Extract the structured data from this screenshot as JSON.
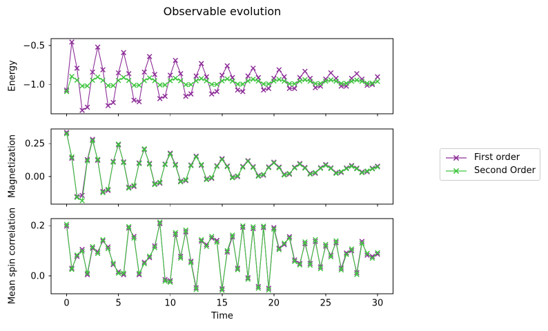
{
  "chart_data": {
    "type": "line",
    "title": "Observable evolution",
    "xlabel": "Time",
    "marker": "x",
    "grid": false,
    "legend": {
      "position": "center right",
      "entries": [
        {
          "label": "First order",
          "color": "#8c2d97",
          "marker": "x"
        },
        {
          "label": "Second Order",
          "color": "#3ec43e",
          "marker": "x"
        }
      ]
    },
    "xlim": [
      -1.5,
      31.5
    ],
    "xticks": [
      0,
      5,
      10,
      15,
      20,
      25,
      30
    ],
    "xtick_labels": [
      "0",
      "5",
      "10",
      "15",
      "20",
      "25",
      "30"
    ],
    "x": [
      0,
      0.5,
      1,
      1.5,
      2,
      2.5,
      3,
      3.5,
      4,
      4.5,
      5,
      5.5,
      6,
      6.5,
      7,
      7.5,
      8,
      8.5,
      9,
      9.5,
      10,
      10.5,
      11,
      11.5,
      12,
      12.5,
      13,
      13.5,
      14,
      14.5,
      15,
      15.5,
      16,
      16.5,
      17,
      17.5,
      18,
      18.5,
      19,
      19.5,
      20,
      20.5,
      21,
      21.5,
      22,
      22.5,
      23,
      23.5,
      24,
      24.5,
      25,
      25.5,
      26,
      26.5,
      27,
      27.5,
      28,
      28.5,
      29,
      29.5,
      30
    ],
    "panels": [
      {
        "id": "energy",
        "ylabel": "Energy",
        "ylim": [
          -1.374,
          -0.411
        ],
        "yticks": [
          -0.5,
          -1.0
        ],
        "ytick_labels": [
          "−0.5",
          "−1.0"
        ],
        "series": [
          {
            "name": "First order",
            "values": [
              -1.07,
              -0.455,
              -0.79,
              -1.33,
              -1.29,
              -0.84,
              -0.52,
              -0.81,
              -1.27,
              -1.23,
              -0.85,
              -0.59,
              -0.86,
              -1.2,
              -1.22,
              -0.84,
              -0.64,
              -0.87,
              -1.18,
              -1.15,
              -0.88,
              -0.69,
              -0.86,
              -1.15,
              -1.12,
              -0.89,
              -0.73,
              -0.9,
              -1.12,
              -1.09,
              -0.88,
              -0.76,
              -0.91,
              -1.07,
              -1.09,
              -0.89,
              -0.79,
              -0.91,
              -1.07,
              -1.05,
              -0.92,
              -0.81,
              -0.9,
              -1.05,
              -1.05,
              -0.91,
              -0.83,
              -0.92,
              -1.04,
              -1.02,
              -0.93,
              -0.85,
              -0.92,
              -1.02,
              -1.02,
              -0.92,
              -0.86,
              -0.93,
              -1.01,
              -1.0,
              -0.9
            ]
          },
          {
            "name": "Second Order",
            "values": [
              -1.09,
              -0.896,
              -0.944,
              -1.018,
              -1.017,
              -0.945,
              -0.903,
              -0.946,
              -1.013,
              -1.012,
              -0.947,
              -0.909,
              -0.948,
              -1.009,
              -1.008,
              -0.949,
              -0.914,
              -0.95,
              -1.005,
              -1.004,
              -0.951,
              -0.919,
              -0.951,
              -1.001,
              -1.0,
              -0.952,
              -0.923,
              -0.952,
              -0.997,
              -0.997,
              -0.953,
              -0.927,
              -0.954,
              -0.994,
              -0.994,
              -0.954,
              -0.931,
              -0.955,
              -0.992,
              -0.991,
              -0.955,
              -0.934,
              -0.956,
              -0.989,
              -0.989,
              -0.956,
              -0.937,
              -0.957,
              -0.987,
              -0.986,
              -0.957,
              -0.94,
              -0.957,
              -0.985,
              -0.984,
              -0.958,
              -0.942,
              -0.958,
              -0.983,
              -0.982,
              -0.959
            ]
          }
        ]
      },
      {
        "id": "magnetization",
        "ylabel": "Magnetization",
        "ylim": [
          -0.211,
          0.361
        ],
        "yticks": [
          0.25,
          0.0
        ],
        "ytick_labels": [
          "0.25",
          "0.00"
        ],
        "series": [
          {
            "name": "First order",
            "values": [
              0.335,
              0.138,
              -0.153,
              -0.145,
              0.128,
              0.282,
              0.122,
              -0.114,
              -0.107,
              0.114,
              0.24,
              0.11,
              -0.082,
              -0.077,
              0.103,
              0.205,
              0.099,
              -0.056,
              -0.052,
              0.094,
              0.177,
              0.091,
              -0.036,
              -0.032,
              0.087,
              0.154,
              0.084,
              -0.019,
              -0.015,
              0.081,
              0.135,
              0.079,
              -0.005,
              -0.002,
              0.076,
              0.12,
              0.074,
              0.007,
              0.009,
              0.072,
              0.108,
              0.071,
              0.016,
              0.017,
              0.069,
              0.098,
              0.068,
              0.023,
              0.024,
              0.066,
              0.09,
              0.065,
              0.029,
              0.03,
              0.064,
              0.083,
              0.063,
              0.034,
              0.035,
              0.062,
              0.078
            ]
          },
          {
            "name": "Second Order",
            "values": [
              0.325,
              0.148,
              -0.16,
              -0.185,
              0.118,
              0.272,
              0.13,
              -0.124,
              -0.098,
              0.108,
              0.246,
              0.104,
              -0.09,
              -0.069,
              0.097,
              0.21,
              0.093,
              -0.062,
              -0.045,
              0.09,
              0.17,
              0.085,
              -0.042,
              -0.026,
              0.082,
              0.148,
              0.09,
              -0.025,
              -0.009,
              0.076,
              0.128,
              0.074,
              -0.011,
              0.004,
              0.07,
              0.114,
              0.068,
              0.001,
              0.015,
              0.066,
              0.102,
              0.065,
              0.01,
              0.023,
              0.064,
              0.092,
              0.062,
              0.017,
              0.03,
              0.061,
              0.084,
              0.06,
              0.023,
              0.036,
              0.059,
              0.077,
              0.058,
              0.028,
              0.041,
              0.057,
              0.072
            ]
          }
        ]
      },
      {
        "id": "mean-spin-correlation",
        "ylabel": "Mean spin correlation",
        "ylim": [
          -0.072,
          0.228
        ],
        "yticks": [
          0.2,
          0.0
        ],
        "ytick_labels": [
          "0.2",
          "0.0"
        ],
        "series": [
          {
            "name": "First order",
            "values": [
              0.198,
              0.03,
              0.077,
              0.105,
              0.004,
              0.11,
              0.096,
              0.138,
              0.115,
              0.044,
              0.016,
              0.004,
              0.19,
              0.157,
              0.004,
              0.054,
              0.072,
              0.119,
              0.208,
              -0.015,
              -0.02,
              0.165,
              0.077,
              0.175,
              0.058,
              -0.048,
              0.138,
              0.124,
              0.15,
              0.141,
              -0.052,
              0.094,
              0.155,
              0.03,
              0.193,
              -0.008,
              0.188,
              -0.043,
              0.192,
              -0.05,
              0.192,
              0.11,
              0.124,
              0.156,
              0.063,
              0.049,
              0.128,
              0.049,
              0.137,
              0.035,
              0.118,
              0.082,
              0.132,
              0.03,
              0.091,
              0.1,
              0.012,
              0.137,
              0.082,
              0.077,
              0.086
            ]
          },
          {
            "name": "Second Order",
            "values": [
              0.205,
              0.025,
              0.083,
              0.098,
              0.01,
              0.116,
              0.089,
              0.144,
              0.108,
              0.05,
              0.01,
              0.01,
              0.196,
              0.15,
              0.01,
              0.048,
              0.078,
              0.112,
              0.214,
              -0.022,
              -0.026,
              0.172,
              0.07,
              0.182,
              0.052,
              -0.055,
              0.144,
              0.117,
              0.157,
              0.134,
              -0.058,
              0.1,
              0.162,
              0.024,
              0.199,
              -0.014,
              0.195,
              -0.05,
              0.198,
              -0.057,
              0.186,
              0.104,
              0.13,
              0.15,
              0.057,
              0.043,
              0.135,
              0.042,
              0.144,
              0.028,
              0.125,
              0.075,
              0.139,
              0.023,
              0.085,
              0.107,
              0.005,
              0.13,
              0.089,
              0.07,
              0.092
            ]
          }
        ]
      }
    ]
  }
}
